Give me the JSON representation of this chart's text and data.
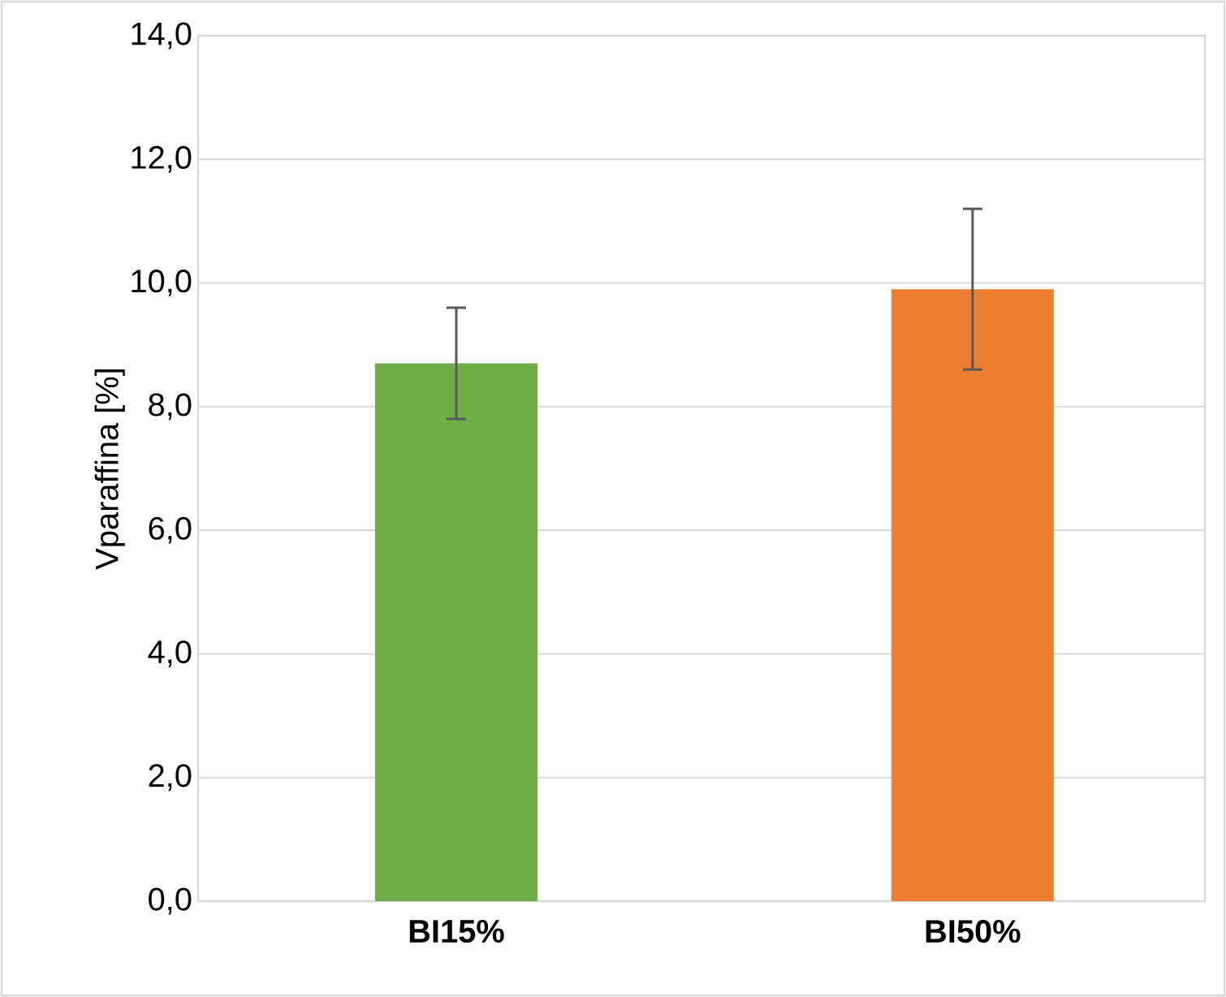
{
  "chart_data": {
    "type": "bar",
    "ylabel": "Vparaffina [%]",
    "categories": [
      "BI15%",
      "BI50%"
    ],
    "values": [
      8.7,
      9.9
    ],
    "colors": [
      "#70ad47",
      "#ed7d31"
    ],
    "errors": [
      [
        7.8,
        9.6
      ],
      [
        8.6,
        11.2
      ]
    ],
    "ylim": [
      0,
      14
    ],
    "yticks": [
      {
        "value": 0,
        "label": "0,0"
      },
      {
        "value": 2,
        "label": "2,0"
      },
      {
        "value": 4,
        "label": "4,0"
      },
      {
        "value": 6,
        "label": "6,0"
      },
      {
        "value": 8,
        "label": "8,0"
      },
      {
        "value": 10,
        "label": "10,0"
      },
      {
        "value": 12,
        "label": "12,0"
      },
      {
        "value": 14,
        "label": "14,0"
      }
    ],
    "grid": "y"
  }
}
